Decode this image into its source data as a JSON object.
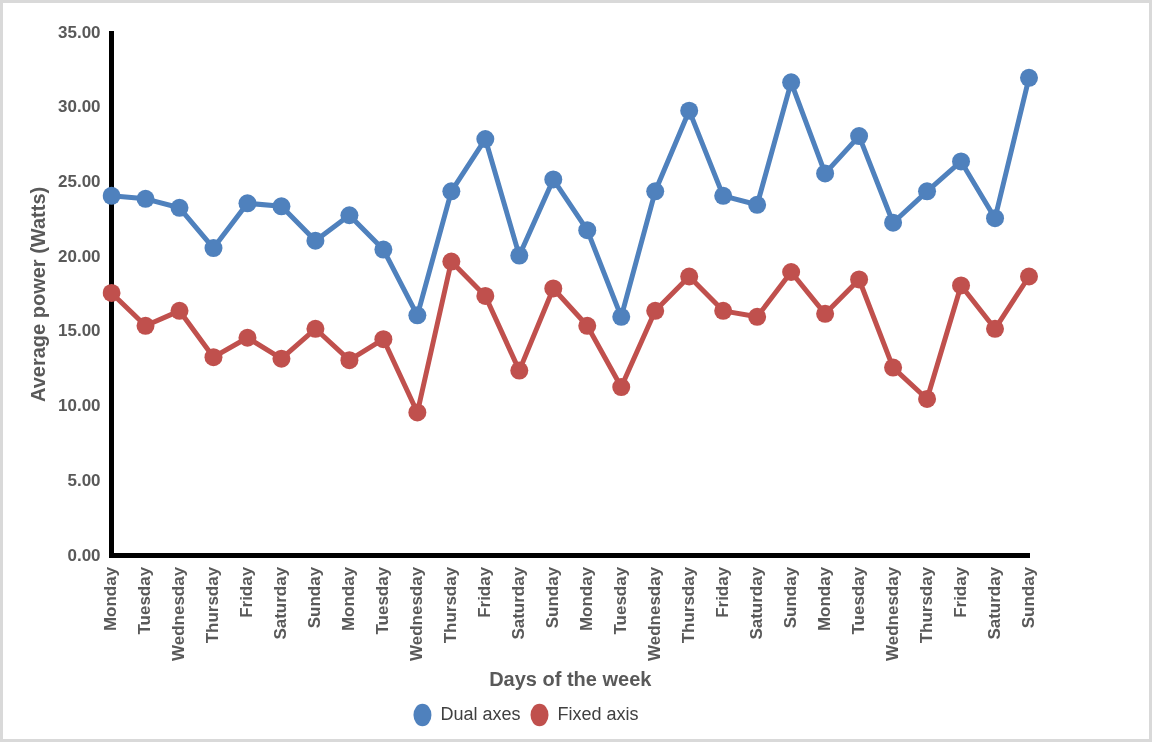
{
  "chart_data": {
    "type": "line",
    "xlabel": "Days of the week",
    "ylabel": "Average power (Watts)",
    "categories": [
      "Monday",
      "Tuesday",
      "Wednesday",
      "Thursday",
      "Friday",
      "Saturday",
      "Sunday",
      "Monday",
      "Tuesday",
      "Wednesday",
      "Thursday",
      "Friday",
      "Saturday",
      "Sunday",
      "Monday",
      "Tuesday",
      "Wednesday",
      "Thursday",
      "Friday",
      "Saturday",
      "Sunday",
      "Monday",
      "Tuesday",
      "Wednesday",
      "Thursday",
      "Friday",
      "Saturday",
      "Sunday"
    ],
    "series": [
      {
        "name": "Dual axes",
        "color": "#4f81bd",
        "values": [
          24.1,
          23.9,
          23.3,
          20.6,
          23.6,
          23.4,
          21.1,
          22.8,
          20.5,
          16.1,
          24.4,
          27.9,
          20.1,
          25.2,
          21.8,
          16.0,
          24.4,
          29.8,
          24.1,
          23.5,
          31.7,
          25.6,
          28.1,
          22.3,
          24.4,
          26.4,
          22.6,
          32.0
        ]
      },
      {
        "name": "Fixed axis",
        "color": "#c0504d",
        "values": [
          17.6,
          15.4,
          16.4,
          13.3,
          14.6,
          13.2,
          15.2,
          13.1,
          14.5,
          9.6,
          19.7,
          17.4,
          12.4,
          17.9,
          15.4,
          11.3,
          16.4,
          18.7,
          16.4,
          16.0,
          19.0,
          16.2,
          18.5,
          12.6,
          10.5,
          18.1,
          15.2,
          18.7
        ]
      }
    ],
    "ylim": [
      0,
      35
    ],
    "yticks": [
      {
        "value": 0,
        "label": "0.00"
      },
      {
        "value": 5,
        "label": "5.00"
      },
      {
        "value": 10,
        "label": "10.00"
      },
      {
        "value": 15,
        "label": "15.00"
      },
      {
        "value": 20,
        "label": "20.00"
      },
      {
        "value": 25,
        "label": "25.00"
      },
      {
        "value": 30,
        "label": "30.00"
      },
      {
        "value": 35,
        "label": "35.00"
      }
    ],
    "grid": false,
    "legend": "bottom",
    "marker": "circle",
    "line_style": "solid"
  }
}
